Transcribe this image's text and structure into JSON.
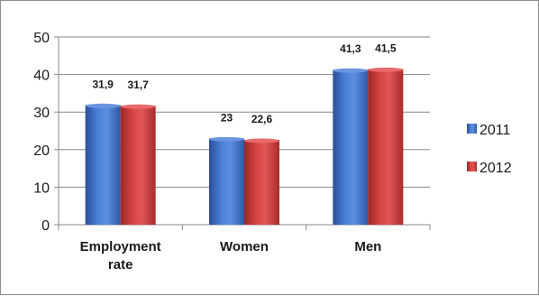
{
  "chart_data": {
    "type": "bar",
    "categories": [
      [
        "Employment",
        "rate"
      ],
      [
        "Women"
      ],
      [
        "Men"
      ]
    ],
    "series": [
      {
        "name": "2011",
        "values": [
          31.9,
          23,
          41.3
        ],
        "labels": [
          "31,9",
          "23",
          "41,3"
        ],
        "color": "#3d6fc9",
        "color_dark": "#2a4f99",
        "color_light": "#6b95e0"
      },
      {
        "name": "2012",
        "values": [
          31.7,
          22.6,
          41.5
        ],
        "labels": [
          "31,7",
          "22,6",
          "41,5"
        ],
        "color": "#d13b3b",
        "color_dark": "#9c2626",
        "color_light": "#e86a6a"
      }
    ],
    "yticks": [
      0,
      10,
      20,
      30,
      40,
      50
    ],
    "ylim": [
      0,
      50
    ],
    "grid": true,
    "legend_position": "right",
    "xlabel": "",
    "ylabel": "",
    "title": ""
  }
}
